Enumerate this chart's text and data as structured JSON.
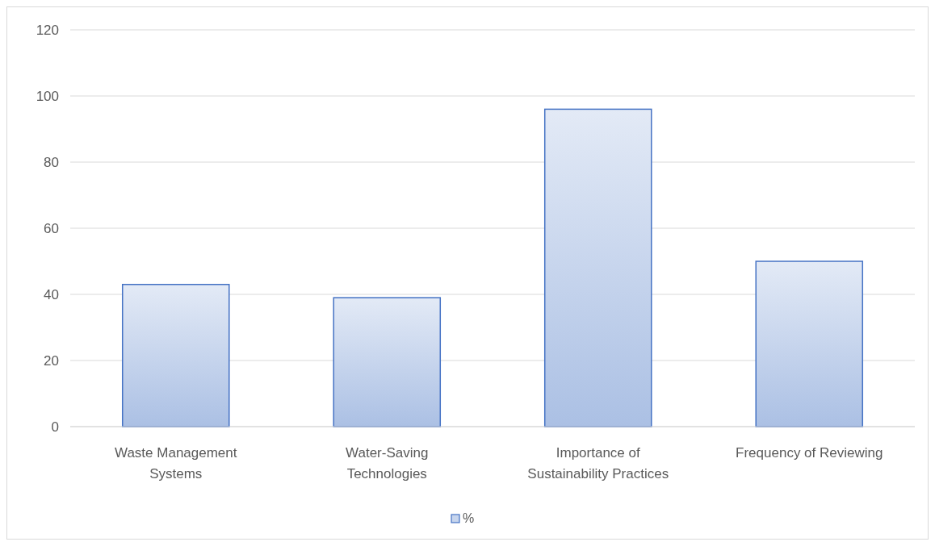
{
  "chart_data": {
    "type": "bar",
    "categories": [
      "Waste Management Systems",
      "Water-Saving Technologies",
      "Importance of Sustainability Practices",
      "Frequency of Reviewing"
    ],
    "series": [
      {
        "name": "%",
        "color": "#4472c4",
        "values": [
          43,
          39,
          96,
          50
        ]
      }
    ],
    "ylim": [
      0,
      120
    ],
    "yticks": [
      0,
      20,
      40,
      60,
      80,
      100,
      120
    ],
    "grid": "y",
    "legend": "bottom"
  }
}
